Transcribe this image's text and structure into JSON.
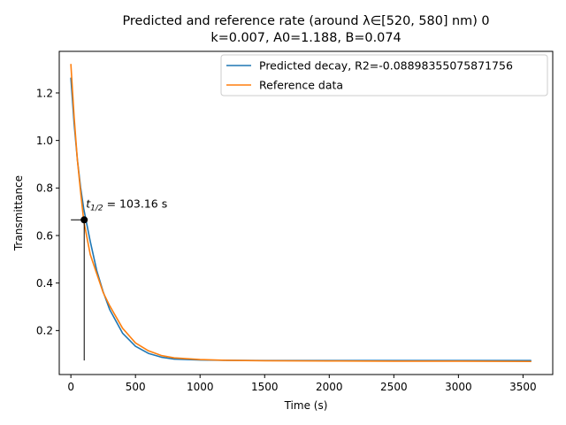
{
  "chart_data": {
    "type": "line",
    "title_line1": "Predicted and reference rate (around λ∈[520, 580] nm) 0",
    "title_line2": "k=0.007, A0=1.188, B=0.074",
    "xlabel": "Time (s)",
    "ylabel": "Transmittance",
    "xlim": [
      -90,
      3730
    ],
    "ylim": [
      0.015,
      1.375
    ],
    "xticks": [
      0,
      500,
      1000,
      1500,
      2000,
      2500,
      3000,
      3500
    ],
    "yticks": [
      0.2,
      0.4,
      0.6,
      0.8,
      1.0,
      1.2
    ],
    "ytick_labels": [
      "0.2",
      "0.4",
      "0.6",
      "0.8",
      "1.0",
      "1.2"
    ],
    "grid": false,
    "legend_position": "top-right",
    "series": [
      {
        "name": "Predicted decay, R2=-0.08898355075871756",
        "color": "#1f77b4",
        "x": [
          0,
          25,
          50,
          75,
          100,
          150,
          200,
          250,
          300,
          400,
          500,
          600,
          700,
          800,
          1000,
          1200,
          1500,
          2000,
          2500,
          3000,
          3560
        ],
        "y": [
          1.262,
          1.071,
          0.921,
          0.803,
          0.711,
          0.575,
          0.453,
          0.363,
          0.289,
          0.189,
          0.134,
          0.104,
          0.088,
          0.08,
          0.076,
          0.075,
          0.074,
          0.074,
          0.074,
          0.074,
          0.074
        ]
      },
      {
        "name": "Reference data",
        "color": "#ff7f0e",
        "x": [
          0,
          25,
          50,
          75,
          100,
          150,
          200,
          250,
          300,
          400,
          500,
          600,
          700,
          800,
          1000,
          1200,
          1500,
          2000,
          2500,
          3000,
          3560
        ],
        "y": [
          1.32,
          1.1,
          0.92,
          0.785,
          0.66,
          0.52,
          0.44,
          0.36,
          0.305,
          0.21,
          0.148,
          0.115,
          0.095,
          0.085,
          0.078,
          0.075,
          0.073,
          0.072,
          0.071,
          0.071,
          0.07
        ]
      }
    ],
    "annotation": {
      "label_prefix": "t",
      "label_sub": "1/2",
      "label_rest": " = 103.16 s",
      "point": [
        103.16,
        0.666
      ],
      "vline_ymin": 0.074,
      "hline_xmin": 0
    }
  }
}
